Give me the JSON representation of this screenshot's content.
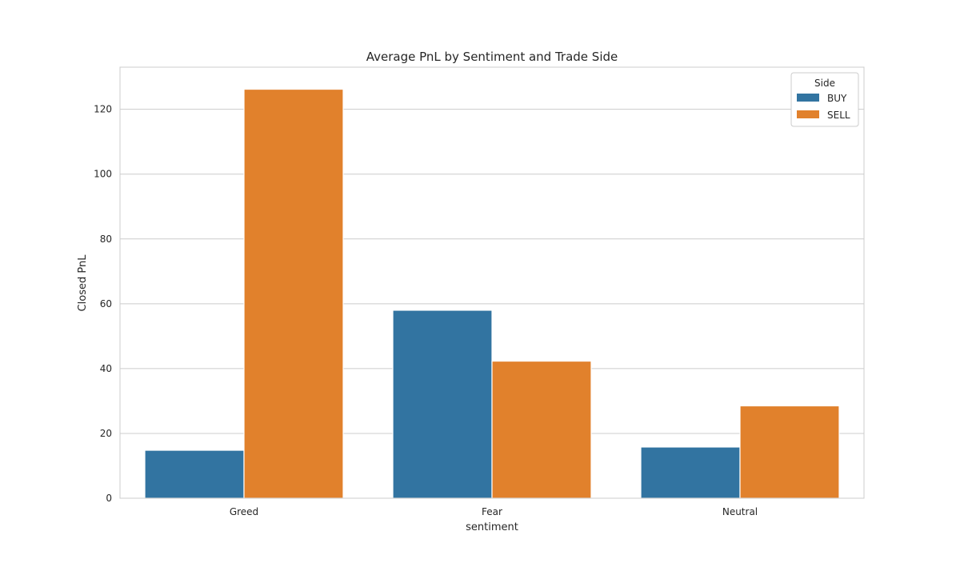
{
  "chart_data": {
    "type": "bar",
    "title": "Average PnL by Sentiment and Trade Side",
    "xlabel": "sentiment",
    "ylabel": "Closed PnL",
    "categories": [
      "Greed",
      "Fear",
      "Neutral"
    ],
    "series": [
      {
        "name": "BUY",
        "color": "#3274a1",
        "values": [
          14.8,
          58.0,
          15.8
        ]
      },
      {
        "name": "SELL",
        "color": "#e1812c",
        "values": [
          126.2,
          42.3,
          28.5
        ]
      }
    ],
    "ylim": [
      0,
      133
    ],
    "yticks": [
      0,
      20,
      40,
      60,
      80,
      100,
      120
    ],
    "grid": true,
    "legend": {
      "title": "Side",
      "position": "top-right"
    }
  }
}
